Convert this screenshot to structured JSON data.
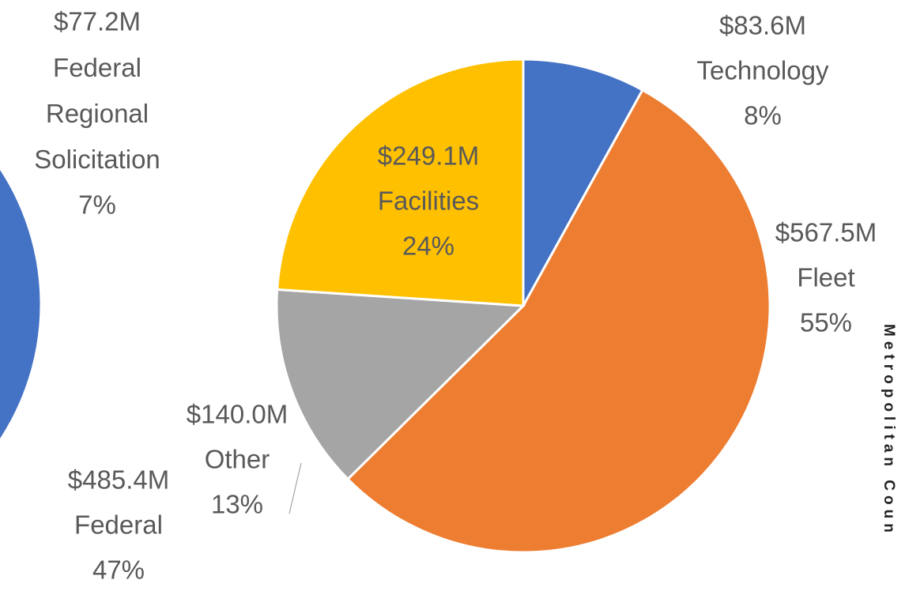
{
  "chart_data": [
    {
      "type": "pie",
      "categories": [
        "Federal Regional Solicitation",
        "Federal"
      ],
      "values": [
        77.2,
        485.4
      ],
      "value_labels": [
        "$77.2M",
        "$485.4M"
      ],
      "percent_labels": [
        "7%",
        "47%"
      ],
      "colors": [
        "#ed7d31",
        "#4472c4"
      ]
    },
    {
      "type": "pie",
      "categories": [
        "Technology",
        "Fleet",
        "Other",
        "Facilities"
      ],
      "values": [
        83.6,
        567.5,
        140.0,
        249.1
      ],
      "value_labels": [
        "$83.6M",
        "$567.5M",
        "$140.0M",
        "$249.1M"
      ],
      "percent_labels": [
        "8%",
        "55%",
        "13%",
        "24%"
      ],
      "colors": [
        "#4472c4",
        "#ed7d31",
        "#a5a5a5",
        "#ffc000"
      ]
    }
  ],
  "side_text": "Metropolitan Coun"
}
